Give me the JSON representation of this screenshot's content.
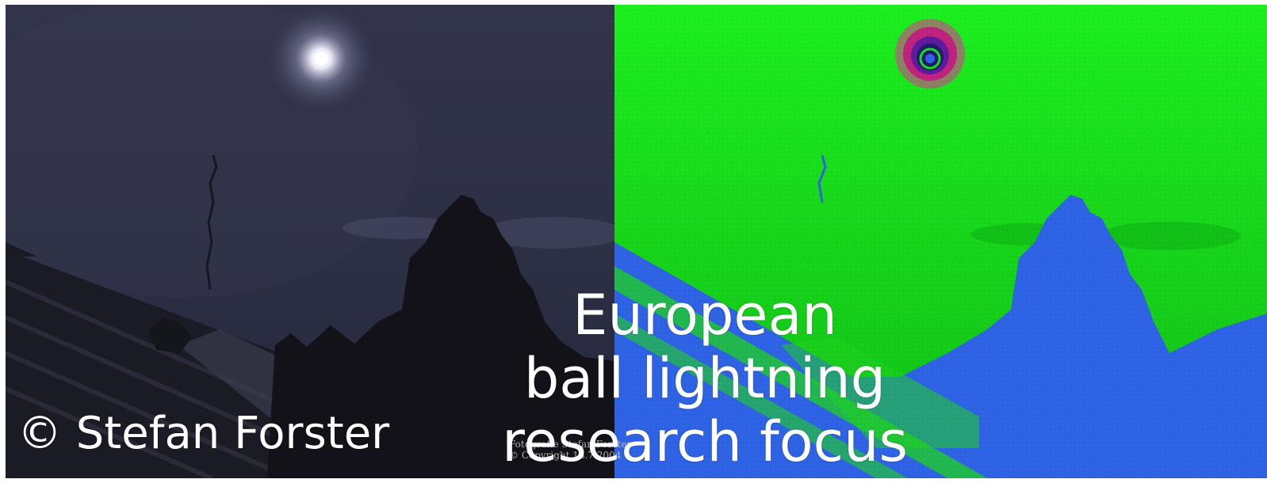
{
  "photo": {
    "left_panel": "moon-night-photo",
    "right_panel": "false-color-analysis",
    "colors": {
      "night_sky": "#2d2f45",
      "silhouette": "#121218",
      "false_color_green": "#16d81a",
      "false_color_blue": "#2f63e6"
    }
  },
  "caption": {
    "copyright": "© Stefan Forster",
    "title_lines": [
      "European",
      "ball lightning",
      "research focus"
    ]
  },
  "watermark": {
    "line1": "Fotografie Stefan Forster",
    "line2": "© Copyright 18.7.2004"
  }
}
